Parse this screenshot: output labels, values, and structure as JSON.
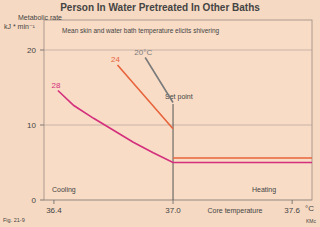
{
  "chart_data": {
    "type": "line",
    "title": "Person In Water Pretreated In Other Baths",
    "y_label": "Metabolic rate",
    "y_unit": "kJ * min⁻¹",
    "x_label": "Core temperature",
    "x_unit": "°C",
    "xlim": [
      36.35,
      37.7
    ],
    "xticks": [
      36.4,
      37.0,
      37.6
    ],
    "ylim": [
      0,
      24
    ],
    "yticks": [
      0,
      10,
      20
    ],
    "grid": true,
    "series": [
      {
        "name": "20°C",
        "color": "#7a7a7a",
        "x": [
          36.86,
          37.0
        ],
        "values": [
          19,
          13
        ]
      },
      {
        "name": "24",
        "color": "#e8643c",
        "x": [
          36.72,
          37.0,
          37.0,
          37.0,
          37.7
        ],
        "values": [
          18,
          9.5,
          null,
          5.6,
          5.6
        ]
      },
      {
        "name": "28",
        "color": "#d42f7c",
        "x": [
          36.42,
          36.5,
          36.6,
          36.7,
          36.8,
          36.9,
          37.0,
          37.7
        ],
        "values": [
          14.6,
          12.6,
          10.9,
          9.3,
          7.7,
          6.3,
          5.0,
          5.0
        ]
      }
    ],
    "annotations": {
      "shivering": "Mean skin and water bath temperature elicits shivering",
      "set_point": "Set point",
      "set_point_x": 37.0,
      "cooling": "Cooling",
      "heating": "Heating",
      "figure": "Fig. 21-9",
      "credit": "KMc"
    }
  }
}
